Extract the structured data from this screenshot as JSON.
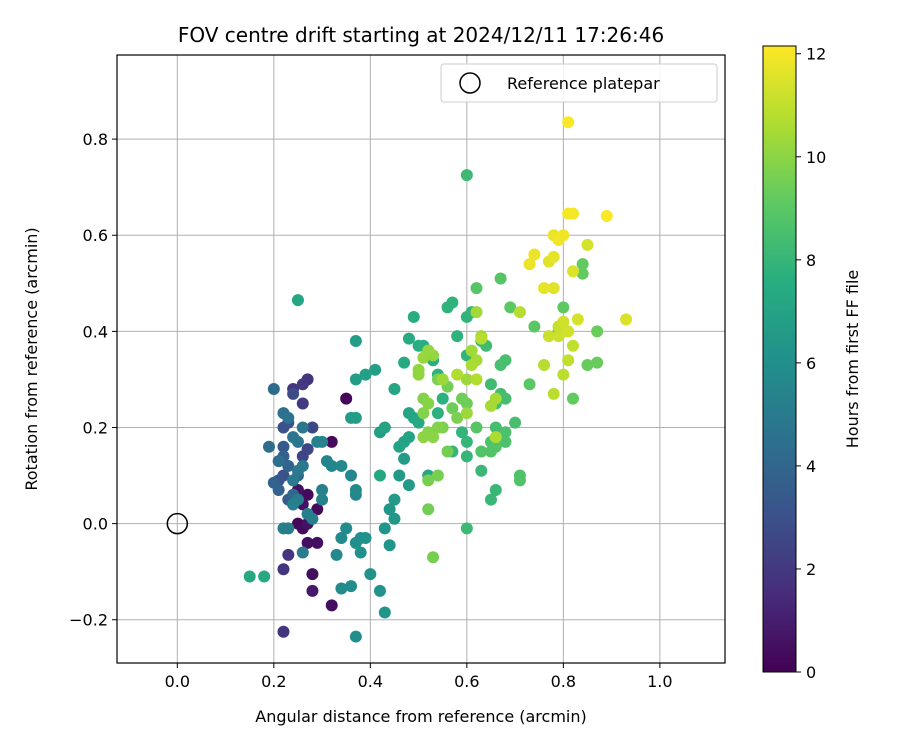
{
  "chart_data": {
    "type": "scatter",
    "title": "FOV centre drift starting at 2024/12/11 17:26:46",
    "xlabel": "Angular distance from reference (arcmin)",
    "ylabel": "Rotation from reference (arcmin)",
    "xlim": [
      -0.125,
      1.135
    ],
    "ylim": [
      -0.29,
      0.975
    ],
    "xticks": [
      "0.0",
      "0.2",
      "0.4",
      "0.6",
      "0.8",
      "1.0"
    ],
    "xtick_values": [
      0.0,
      0.2,
      0.4,
      0.6,
      0.8,
      1.0
    ],
    "yticks": [
      "−0.2",
      "0.0",
      "0.2",
      "0.4",
      "0.6",
      "0.8"
    ],
    "ytick_values": [
      -0.2,
      0.0,
      0.2,
      0.4,
      0.6,
      0.8
    ],
    "grid": true,
    "legend": {
      "position": "top-right",
      "entries": [
        "Reference platepar"
      ]
    },
    "reference_point": {
      "x": 0.0,
      "y": 0.0
    },
    "colorbar": {
      "label": "Hours from first FF file",
      "range": [
        0,
        12.15
      ],
      "ticks": [
        "0",
        "2",
        "4",
        "6",
        "8",
        "10",
        "12"
      ],
      "tick_values": [
        0,
        2,
        4,
        6,
        8,
        10,
        12
      ],
      "colormap": "viridis"
    },
    "points": [
      [
        0.25,
        0.0,
        0.2
      ],
      [
        0.26,
        -0.01,
        0.3
      ],
      [
        0.27,
        0.06,
        0.3
      ],
      [
        0.28,
        -0.105,
        0.4
      ],
      [
        0.28,
        -0.14,
        0.8
      ],
      [
        0.27,
        -0.04,
        0.5
      ],
      [
        0.29,
        -0.04,
        0.5
      ],
      [
        0.32,
        -0.17,
        0.5
      ],
      [
        0.32,
        0.17,
        0.3
      ],
      [
        0.35,
        0.26,
        0.2
      ],
      [
        0.29,
        0.03,
        0.3
      ],
      [
        0.25,
        0.07,
        0.6
      ],
      [
        0.26,
        0.04,
        0.6
      ],
      [
        0.27,
        0.0,
        0.6
      ],
      [
        0.23,
        -0.065,
        1.8
      ],
      [
        0.22,
        -0.095,
        1.8
      ],
      [
        0.22,
        -0.225,
        1.8
      ],
      [
        0.27,
        0.3,
        1.8
      ],
      [
        0.24,
        0.28,
        1.9
      ],
      [
        0.26,
        0.29,
        2.0
      ],
      [
        0.26,
        0.25,
        2.1
      ],
      [
        0.26,
        0.14,
        2.5
      ],
      [
        0.27,
        0.155,
        2.5
      ],
      [
        0.28,
        0.2,
        2.6
      ],
      [
        0.24,
        0.27,
        2.8
      ],
      [
        0.23,
        0.21,
        2.9
      ],
      [
        0.22,
        0.2,
        3.0
      ],
      [
        0.22,
        0.1,
        3.0
      ],
      [
        0.21,
        0.09,
        3.2
      ],
      [
        0.22,
        0.16,
        3.4
      ],
      [
        0.23,
        0.05,
        3.5
      ],
      [
        0.24,
        0.04,
        3.6
      ],
      [
        0.22,
        0.14,
        3.7
      ],
      [
        0.2,
        0.085,
        3.8
      ],
      [
        0.21,
        0.07,
        3.8
      ],
      [
        0.23,
        0.12,
        3.9
      ],
      [
        0.25,
        0.1,
        4.0
      ],
      [
        0.24,
        0.06,
        4.1
      ],
      [
        0.2,
        0.28,
        4.2
      ],
      [
        0.19,
        0.16,
        4.3
      ],
      [
        0.21,
        0.13,
        4.4
      ],
      [
        0.22,
        0.23,
        4.5
      ],
      [
        0.23,
        0.22,
        4.6
      ],
      [
        0.24,
        0.18,
        4.7
      ],
      [
        0.25,
        0.17,
        4.7
      ],
      [
        0.26,
        0.2,
        4.8
      ],
      [
        0.26,
        0.12,
        4.8
      ],
      [
        0.25,
        0.11,
        4.9
      ],
      [
        0.24,
        0.09,
        4.9
      ],
      [
        0.25,
        0.05,
        5.0
      ],
      [
        0.26,
        -0.06,
        5.0
      ],
      [
        0.23,
        -0.01,
        5.1
      ],
      [
        0.22,
        -0.01,
        5.1
      ],
      [
        0.27,
        0.02,
        5.2
      ],
      [
        0.28,
        0.01,
        5.2
      ],
      [
        0.24,
        0.04,
        5.3
      ],
      [
        0.3,
        0.05,
        5.3
      ],
      [
        0.3,
        0.07,
        5.3
      ],
      [
        0.29,
        0.17,
        5.4
      ],
      [
        0.3,
        0.17,
        5.4
      ],
      [
        0.31,
        0.13,
        5.5
      ],
      [
        0.32,
        0.12,
        5.5
      ],
      [
        0.34,
        0.12,
        5.6
      ],
      [
        0.36,
        0.1,
        5.6
      ],
      [
        0.37,
        0.06,
        5.6
      ],
      [
        0.37,
        0.07,
        5.7
      ],
      [
        0.33,
        -0.065,
        5.7
      ],
      [
        0.34,
        -0.03,
        5.7
      ],
      [
        0.35,
        -0.01,
        5.8
      ],
      [
        0.34,
        -0.135,
        5.8
      ],
      [
        0.36,
        -0.13,
        5.9
      ],
      [
        0.37,
        -0.235,
        5.9
      ],
      [
        0.37,
        -0.04,
        6.0
      ],
      [
        0.38,
        -0.03,
        6.0
      ],
      [
        0.39,
        -0.03,
        6.1
      ],
      [
        0.38,
        -0.06,
        6.1
      ],
      [
        0.4,
        -0.105,
        6.2
      ],
      [
        0.42,
        -0.14,
        6.2
      ],
      [
        0.43,
        -0.185,
        6.3
      ],
      [
        0.43,
        -0.01,
        6.3
      ],
      [
        0.44,
        -0.045,
        6.3
      ],
      [
        0.44,
        0.03,
        6.4
      ],
      [
        0.45,
        0.01,
        6.4
      ],
      [
        0.45,
        0.05,
        6.5
      ],
      [
        0.46,
        0.1,
        6.5
      ],
      [
        0.47,
        0.135,
        6.6
      ],
      [
        0.48,
        0.08,
        6.6
      ],
      [
        0.36,
        0.22,
        6.6
      ],
      [
        0.37,
        0.22,
        6.7
      ],
      [
        0.37,
        0.3,
        6.7
      ],
      [
        0.37,
        0.38,
        6.7
      ],
      [
        0.39,
        0.31,
        6.8
      ],
      [
        0.41,
        0.32,
        6.8
      ],
      [
        0.42,
        0.19,
        6.8
      ],
      [
        0.43,
        0.2,
        6.9
      ],
      [
        0.47,
        0.17,
        6.9
      ],
      [
        0.48,
        0.18,
        7.0
      ],
      [
        0.46,
        0.16,
        7.0
      ],
      [
        0.45,
        0.28,
        7.1
      ],
      [
        0.48,
        0.23,
        7.1
      ],
      [
        0.49,
        0.22,
        7.1
      ],
      [
        0.42,
        0.1,
        7.2
      ],
      [
        0.52,
        0.1,
        7.2
      ],
      [
        0.25,
        0.465,
        7.2
      ],
      [
        0.18,
        -0.11,
        7.3
      ],
      [
        0.15,
        -0.11,
        7.3
      ],
      [
        0.5,
        0.21,
        7.4
      ],
      [
        0.47,
        0.335,
        7.4
      ],
      [
        0.48,
        0.385,
        7.4
      ],
      [
        0.49,
        0.43,
        7.5
      ],
      [
        0.5,
        0.37,
        7.5
      ],
      [
        0.51,
        0.37,
        7.6
      ],
      [
        0.52,
        0.36,
        7.6
      ],
      [
        0.53,
        0.34,
        7.6
      ],
      [
        0.54,
        0.31,
        7.7
      ],
      [
        0.55,
        0.26,
        7.7
      ],
      [
        0.54,
        0.23,
        7.7
      ],
      [
        0.56,
        0.45,
        7.8
      ],
      [
        0.57,
        0.46,
        7.8
      ],
      [
        0.58,
        0.39,
        7.8
      ],
      [
        0.6,
        0.35,
        7.9
      ],
      [
        0.6,
        0.43,
        7.9
      ],
      [
        0.61,
        0.44,
        7.9
      ],
      [
        0.59,
        0.19,
        7.9
      ],
      [
        0.6,
        0.17,
        8.0
      ],
      [
        0.57,
        0.15,
        8.0
      ],
      [
        0.6,
        0.14,
        8.0
      ],
      [
        0.63,
        0.11,
        8.1
      ],
      [
        0.65,
        0.05,
        8.1
      ],
      [
        0.66,
        0.07,
        8.1
      ],
      [
        0.6,
        -0.01,
        8.2
      ],
      [
        0.6,
        0.725,
        8.2
      ],
      [
        0.63,
        0.38,
        8.2
      ],
      [
        0.64,
        0.37,
        8.3
      ],
      [
        0.65,
        0.29,
        8.3
      ],
      [
        0.66,
        0.25,
        8.3
      ],
      [
        0.66,
        0.2,
        8.4
      ],
      [
        0.67,
        0.27,
        8.4
      ],
      [
        0.68,
        0.26,
        8.4
      ],
      [
        0.67,
        0.33,
        8.5
      ],
      [
        0.68,
        0.34,
        8.5
      ],
      [
        0.7,
        0.21,
        8.5
      ],
      [
        0.68,
        0.19,
        8.6
      ],
      [
        0.68,
        0.17,
        8.6
      ],
      [
        0.71,
        0.1,
        8.7
      ],
      [
        0.71,
        0.09,
        8.7
      ],
      [
        0.65,
        0.17,
        8.7
      ],
      [
        0.66,
        0.16,
        8.8
      ],
      [
        0.65,
        0.15,
        8.8
      ],
      [
        0.63,
        0.15,
        8.8
      ],
      [
        0.62,
        0.2,
        8.9
      ],
      [
        0.62,
        0.49,
        8.9
      ],
      [
        0.67,
        0.51,
        8.9
      ],
      [
        0.69,
        0.45,
        9.0
      ],
      [
        0.73,
        0.29,
        9.0
      ],
      [
        0.74,
        0.41,
        9.0
      ],
      [
        0.79,
        0.4,
        9.1
      ],
      [
        0.8,
        0.45,
        9.1
      ],
      [
        0.82,
        0.26,
        9.2
      ],
      [
        0.84,
        0.52,
        9.2
      ],
      [
        0.84,
        0.54,
        9.2
      ],
      [
        0.85,
        0.33,
        9.3
      ],
      [
        0.87,
        0.4,
        9.3
      ],
      [
        0.87,
        0.335,
        9.3
      ],
      [
        0.6,
        0.25,
        9.4
      ],
      [
        0.59,
        0.26,
        9.4
      ],
      [
        0.57,
        0.24,
        9.4
      ],
      [
        0.56,
        0.285,
        9.5
      ],
      [
        0.56,
        0.15,
        9.5
      ],
      [
        0.52,
        0.03,
        9.5
      ],
      [
        0.53,
        -0.07,
        9.6
      ],
      [
        0.52,
        0.09,
        9.6
      ],
      [
        0.54,
        0.1,
        9.6
      ],
      [
        0.55,
        0.2,
        9.7
      ],
      [
        0.58,
        0.22,
        9.7
      ],
      [
        0.54,
        0.3,
        9.7
      ],
      [
        0.54,
        0.2,
        9.8
      ],
      [
        0.51,
        0.23,
        9.8
      ],
      [
        0.51,
        0.26,
        9.8
      ],
      [
        0.52,
        0.25,
        9.9
      ],
      [
        0.52,
        0.19,
        9.9
      ],
      [
        0.51,
        0.18,
        10.0
      ],
      [
        0.53,
        0.18,
        10.0
      ],
      [
        0.53,
        0.35,
        10.1
      ],
      [
        0.5,
        0.32,
        10.1
      ],
      [
        0.5,
        0.31,
        10.1
      ],
      [
        0.51,
        0.345,
        10.2
      ],
      [
        0.52,
        0.36,
        10.2
      ],
      [
        0.55,
        0.3,
        10.3
      ],
      [
        0.6,
        0.3,
        10.3
      ],
      [
        0.6,
        0.23,
        10.3
      ],
      [
        0.61,
        0.36,
        10.4
      ],
      [
        0.62,
        0.44,
        10.4
      ],
      [
        0.63,
        0.39,
        10.4
      ],
      [
        0.62,
        0.34,
        10.5
      ],
      [
        0.65,
        0.245,
        10.5
      ],
      [
        0.66,
        0.26,
        10.5
      ],
      [
        0.66,
        0.18,
        10.6
      ],
      [
        0.61,
        0.33,
        10.6
      ],
      [
        0.62,
        0.3,
        10.7
      ],
      [
        0.58,
        0.31,
        10.7
      ],
      [
        0.63,
        0.385,
        10.8
      ],
      [
        0.71,
        0.44,
        10.8
      ],
      [
        0.76,
        0.33,
        10.8
      ],
      [
        0.78,
        0.27,
        10.9
      ],
      [
        0.8,
        0.31,
        10.9
      ],
      [
        0.81,
        0.34,
        11.0
      ],
      [
        0.82,
        0.37,
        11.0
      ],
      [
        0.79,
        0.41,
        11.1
      ],
      [
        0.8,
        0.4,
        11.1
      ],
      [
        0.79,
        0.39,
        11.2
      ],
      [
        0.77,
        0.39,
        11.2
      ],
      [
        0.8,
        0.42,
        11.3
      ],
      [
        0.81,
        0.4,
        11.3
      ],
      [
        0.83,
        0.425,
        11.4
      ],
      [
        0.85,
        0.58,
        11.4
      ],
      [
        0.93,
        0.425,
        11.5
      ],
      [
        0.82,
        0.525,
        11.5
      ],
      [
        0.77,
        0.545,
        11.6
      ],
      [
        0.78,
        0.49,
        11.6
      ],
      [
        0.78,
        0.555,
        11.7
      ],
      [
        0.76,
        0.49,
        11.7
      ],
      [
        0.74,
        0.56,
        11.8
      ],
      [
        0.73,
        0.54,
        11.8
      ],
      [
        0.78,
        0.6,
        11.8
      ],
      [
        0.79,
        0.59,
        11.9
      ],
      [
        0.8,
        0.6,
        11.9
      ],
      [
        0.82,
        0.645,
        12.0
      ],
      [
        0.81,
        0.645,
        12.0
      ],
      [
        0.89,
        0.64,
        12.1
      ],
      [
        0.81,
        0.835,
        12.1
      ]
    ]
  }
}
